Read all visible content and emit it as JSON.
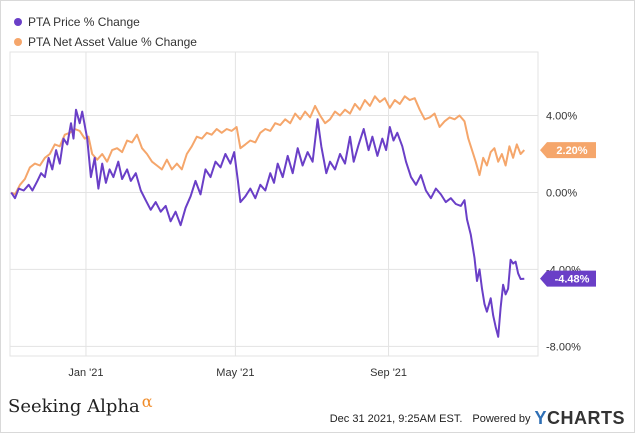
{
  "legend": [
    {
      "label": "PTA Price % Change",
      "color": "#6a3fc7"
    },
    {
      "label": "PTA Net Asset Value % Change",
      "color": "#f5a66b"
    }
  ],
  "footer": {
    "brand": "Seeking Alpha",
    "brand_symbol": "α",
    "timestamp": "Dec 31 2021, 9:25AM EST.",
    "powered_by": "Powered by",
    "provider_mark": "Y",
    "provider_rest": "CHARTS"
  },
  "chart_data": {
    "type": "line",
    "x_range": [
      "2020-11-01",
      "2021-12-30"
    ],
    "x_ticks": [
      {
        "label": "Jan '21",
        "date": "2021-01-01"
      },
      {
        "label": "May '21",
        "date": "2021-05-01"
      },
      {
        "label": "Sep '21",
        "date": "2021-09-01"
      }
    ],
    "ylim": [
      -8.5,
      7.3
    ],
    "y_ticks": [
      {
        "label": "4.00%",
        "value": 4
      },
      {
        "label": "0.00%",
        "value": 0
      },
      {
        "label": "-4.00%",
        "value": -4
      },
      {
        "label": "-8.00%",
        "value": -8
      }
    ],
    "grid": true,
    "legend_position": "top-left",
    "series": [
      {
        "name": "PTA Price % Change",
        "color": "#6a3fc7",
        "end_label": "-4.48%",
        "points": [
          [
            "2020-11-02",
            0.0
          ],
          [
            "2020-11-05",
            -0.3
          ],
          [
            "2020-11-08",
            0.2
          ],
          [
            "2020-11-12",
            0.1
          ],
          [
            "2020-11-16",
            0.4
          ],
          [
            "2020-11-19",
            0.1
          ],
          [
            "2020-11-23",
            0.6
          ],
          [
            "2020-11-26",
            1.0
          ],
          [
            "2020-11-29",
            0.8
          ],
          [
            "2020-12-02",
            1.8
          ],
          [
            "2020-12-05",
            1.2
          ],
          [
            "2020-12-08",
            2.2
          ],
          [
            "2020-12-11",
            1.5
          ],
          [
            "2020-12-14",
            2.8
          ],
          [
            "2020-12-17",
            2.5
          ],
          [
            "2020-12-20",
            3.6
          ],
          [
            "2020-12-22",
            2.8
          ],
          [
            "2020-12-24",
            4.3
          ],
          [
            "2020-12-27",
            3.6
          ],
          [
            "2020-12-29",
            4.2
          ],
          [
            "2021-01-02",
            2.8
          ],
          [
            "2021-01-05",
            0.8
          ],
          [
            "2021-01-08",
            1.8
          ],
          [
            "2021-01-11",
            0.2
          ],
          [
            "2021-01-14",
            1.5
          ],
          [
            "2021-01-17",
            0.5
          ],
          [
            "2021-01-20",
            1.2
          ],
          [
            "2021-01-23",
            0.8
          ],
          [
            "2021-01-27",
            1.6
          ],
          [
            "2021-01-30",
            0.7
          ],
          [
            "2021-02-03",
            1.2
          ],
          [
            "2021-02-06",
            0.6
          ],
          [
            "2021-02-10",
            1.0
          ],
          [
            "2021-02-14",
            0.1
          ],
          [
            "2021-02-18",
            -0.4
          ],
          [
            "2021-02-22",
            -0.9
          ],
          [
            "2021-02-26",
            -0.5
          ],
          [
            "2021-03-02",
            -1.0
          ],
          [
            "2021-03-06",
            -0.7
          ],
          [
            "2021-03-10",
            -1.5
          ],
          [
            "2021-03-14",
            -1.0
          ],
          [
            "2021-03-18",
            -1.7
          ],
          [
            "2021-03-22",
            -0.8
          ],
          [
            "2021-03-26",
            -0.2
          ],
          [
            "2021-03-30",
            0.6
          ],
          [
            "2021-04-03",
            -0.1
          ],
          [
            "2021-04-07",
            1.2
          ],
          [
            "2021-04-11",
            0.8
          ],
          [
            "2021-04-15",
            1.6
          ],
          [
            "2021-04-19",
            1.3
          ],
          [
            "2021-04-23",
            2.0
          ],
          [
            "2021-04-27",
            1.5
          ],
          [
            "2021-04-30",
            2.1
          ],
          [
            "2021-05-03",
            0.6
          ],
          [
            "2021-05-05",
            -0.5
          ],
          [
            "2021-05-09",
            -0.2
          ],
          [
            "2021-05-13",
            0.2
          ],
          [
            "2021-05-17",
            -0.3
          ],
          [
            "2021-05-21",
            0.4
          ],
          [
            "2021-05-25",
            0.1
          ],
          [
            "2021-05-29",
            1.0
          ],
          [
            "2021-06-01",
            0.5
          ],
          [
            "2021-06-04",
            1.5
          ],
          [
            "2021-06-08",
            0.8
          ],
          [
            "2021-06-12",
            1.9
          ],
          [
            "2021-06-16",
            1.0
          ],
          [
            "2021-06-20",
            2.3
          ],
          [
            "2021-06-24",
            1.4
          ],
          [
            "2021-06-28",
            2.1
          ],
          [
            "2021-07-02",
            1.6
          ],
          [
            "2021-07-06",
            3.8
          ],
          [
            "2021-07-09",
            2.4
          ],
          [
            "2021-07-13",
            1.0
          ],
          [
            "2021-07-16",
            1.6
          ],
          [
            "2021-07-20",
            1.2
          ],
          [
            "2021-07-24",
            2.0
          ],
          [
            "2021-07-28",
            1.5
          ],
          [
            "2021-08-01",
            2.9
          ],
          [
            "2021-08-04",
            1.6
          ],
          [
            "2021-08-08",
            2.5
          ],
          [
            "2021-08-12",
            3.3
          ],
          [
            "2021-08-16",
            2.2
          ],
          [
            "2021-08-19",
            2.9
          ],
          [
            "2021-08-23",
            1.9
          ],
          [
            "2021-08-27",
            2.8
          ],
          [
            "2021-08-30",
            2.2
          ],
          [
            "2021-09-02",
            3.4
          ],
          [
            "2021-09-05",
            2.7
          ],
          [
            "2021-09-08",
            3.1
          ],
          [
            "2021-09-12",
            2.4
          ],
          [
            "2021-09-15",
            1.6
          ],
          [
            "2021-09-19",
            0.8
          ],
          [
            "2021-09-23",
            0.4
          ],
          [
            "2021-09-27",
            0.9
          ],
          [
            "2021-10-01",
            0.1
          ],
          [
            "2021-10-05",
            -0.3
          ],
          [
            "2021-10-09",
            0.2
          ],
          [
            "2021-10-13",
            -0.1
          ],
          [
            "2021-10-17",
            -0.5
          ],
          [
            "2021-10-21",
            -0.3
          ],
          [
            "2021-10-25",
            -0.6
          ],
          [
            "2021-10-29",
            -0.7
          ],
          [
            "2021-11-01",
            -0.4
          ],
          [
            "2021-11-03",
            -1.4
          ],
          [
            "2021-11-06",
            -2.2
          ],
          [
            "2021-11-09",
            -3.4
          ],
          [
            "2021-11-11",
            -4.6
          ],
          [
            "2021-11-13",
            -4.0
          ],
          [
            "2021-11-15",
            -5.0
          ],
          [
            "2021-11-17",
            -5.8
          ],
          [
            "2021-11-19",
            -6.2
          ],
          [
            "2021-11-22",
            -5.5
          ],
          [
            "2021-11-24",
            -6.4
          ],
          [
            "2021-11-26",
            -7.0
          ],
          [
            "2021-11-28",
            -7.5
          ],
          [
            "2021-11-30",
            -6.0
          ],
          [
            "2021-12-02",
            -4.8
          ],
          [
            "2021-12-04",
            -5.3
          ],
          [
            "2021-12-06",
            -5.0
          ],
          [
            "2021-12-08",
            -3.5
          ],
          [
            "2021-12-10",
            -3.7
          ],
          [
            "2021-12-12",
            -3.6
          ],
          [
            "2021-12-14",
            -4.2
          ],
          [
            "2021-12-16",
            -4.5
          ],
          [
            "2021-12-19",
            -4.48
          ]
        ]
      },
      {
        "name": "PTA Net Asset Value % Change",
        "color": "#f5a66b",
        "end_label": "2.20%",
        "points": [
          [
            "2020-11-02",
            0.0
          ],
          [
            "2020-11-05",
            -0.1
          ],
          [
            "2020-11-09",
            0.4
          ],
          [
            "2020-11-13",
            0.7
          ],
          [
            "2020-11-17",
            1.3
          ],
          [
            "2020-11-21",
            1.5
          ],
          [
            "2020-11-25",
            1.4
          ],
          [
            "2020-11-29",
            1.8
          ],
          [
            "2020-12-03",
            2.0
          ],
          [
            "2020-12-07",
            2.5
          ],
          [
            "2020-12-11",
            2.4
          ],
          [
            "2020-12-15",
            3.0
          ],
          [
            "2020-12-19",
            3.1
          ],
          [
            "2020-12-23",
            3.3
          ],
          [
            "2020-12-27",
            3.2
          ],
          [
            "2020-12-31",
            2.8
          ],
          [
            "2021-01-03",
            2.9
          ],
          [
            "2021-01-06",
            2.0
          ],
          [
            "2021-01-10",
            1.7
          ],
          [
            "2021-01-14",
            2.0
          ],
          [
            "2021-01-18",
            1.6
          ],
          [
            "2021-01-22",
            2.2
          ],
          [
            "2021-01-26",
            2.3
          ],
          [
            "2021-01-30",
            2.1
          ],
          [
            "2021-02-03",
            2.7
          ],
          [
            "2021-02-07",
            2.6
          ],
          [
            "2021-02-11",
            3.0
          ],
          [
            "2021-02-15",
            2.3
          ],
          [
            "2021-02-19",
            2.0
          ],
          [
            "2021-02-23",
            1.6
          ],
          [
            "2021-02-27",
            1.4
          ],
          [
            "2021-03-03",
            1.2
          ],
          [
            "2021-03-07",
            1.7
          ],
          [
            "2021-03-11",
            1.2
          ],
          [
            "2021-03-15",
            1.5
          ],
          [
            "2021-03-19",
            1.2
          ],
          [
            "2021-03-23",
            2.0
          ],
          [
            "2021-03-27",
            2.4
          ],
          [
            "2021-03-31",
            2.9
          ],
          [
            "2021-04-04",
            2.8
          ],
          [
            "2021-04-08",
            3.1
          ],
          [
            "2021-04-12",
            3.0
          ],
          [
            "2021-04-16",
            3.3
          ],
          [
            "2021-04-20",
            3.1
          ],
          [
            "2021-04-24",
            3.3
          ],
          [
            "2021-04-28",
            3.2
          ],
          [
            "2021-05-02",
            3.4
          ],
          [
            "2021-05-05",
            2.3
          ],
          [
            "2021-05-09",
            2.5
          ],
          [
            "2021-05-13",
            2.7
          ],
          [
            "2021-05-17",
            2.6
          ],
          [
            "2021-05-21",
            3.1
          ],
          [
            "2021-05-25",
            3.3
          ],
          [
            "2021-05-29",
            3.2
          ],
          [
            "2021-06-02",
            3.6
          ],
          [
            "2021-06-06",
            3.5
          ],
          [
            "2021-06-10",
            3.8
          ],
          [
            "2021-06-14",
            3.6
          ],
          [
            "2021-06-18",
            4.1
          ],
          [
            "2021-06-22",
            3.8
          ],
          [
            "2021-06-26",
            4.2
          ],
          [
            "2021-06-30",
            3.9
          ],
          [
            "2021-07-04",
            4.5
          ],
          [
            "2021-07-08",
            4.0
          ],
          [
            "2021-07-12",
            3.6
          ],
          [
            "2021-07-16",
            3.8
          ],
          [
            "2021-07-20",
            4.2
          ],
          [
            "2021-07-24",
            4.0
          ],
          [
            "2021-07-28",
            4.3
          ],
          [
            "2021-08-01",
            4.1
          ],
          [
            "2021-08-05",
            4.6
          ],
          [
            "2021-08-09",
            4.3
          ],
          [
            "2021-08-13",
            4.8
          ],
          [
            "2021-08-17",
            4.5
          ],
          [
            "2021-08-21",
            5.0
          ],
          [
            "2021-08-25",
            4.7
          ],
          [
            "2021-08-29",
            4.9
          ],
          [
            "2021-09-02",
            4.4
          ],
          [
            "2021-09-06",
            4.8
          ],
          [
            "2021-09-10",
            4.6
          ],
          [
            "2021-09-14",
            5.0
          ],
          [
            "2021-09-18",
            4.8
          ],
          [
            "2021-09-22",
            4.9
          ],
          [
            "2021-09-26",
            4.3
          ],
          [
            "2021-09-30",
            3.8
          ],
          [
            "2021-10-04",
            3.9
          ],
          [
            "2021-10-08",
            4.1
          ],
          [
            "2021-10-12",
            3.4
          ],
          [
            "2021-10-16",
            3.7
          ],
          [
            "2021-10-20",
            3.9
          ],
          [
            "2021-10-24",
            3.8
          ],
          [
            "2021-10-28",
            4.0
          ],
          [
            "2021-11-01",
            3.7
          ],
          [
            "2021-11-04",
            2.8
          ],
          [
            "2021-11-07",
            2.2
          ],
          [
            "2021-11-10",
            1.6
          ],
          [
            "2021-11-13",
            0.9
          ],
          [
            "2021-11-16",
            1.8
          ],
          [
            "2021-11-19",
            1.4
          ],
          [
            "2021-11-22",
            2.1
          ],
          [
            "2021-11-25",
            2.3
          ],
          [
            "2021-11-28",
            1.6
          ],
          [
            "2021-12-01",
            2.0
          ],
          [
            "2021-12-04",
            1.4
          ],
          [
            "2021-12-07",
            2.4
          ],
          [
            "2021-12-10",
            1.8
          ],
          [
            "2021-12-13",
            2.5
          ],
          [
            "2021-12-16",
            2.0
          ],
          [
            "2021-12-19",
            2.2
          ]
        ]
      }
    ]
  }
}
